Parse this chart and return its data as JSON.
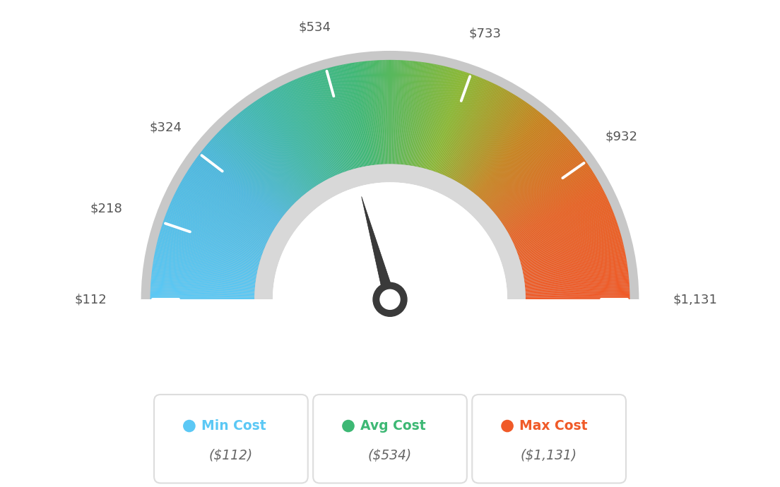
{
  "min_val": 112,
  "max_val": 1131,
  "avg_val": 534,
  "labels": [
    "$112",
    "$218",
    "$324",
    "$534",
    "$733",
    "$932",
    "$1,131"
  ],
  "label_values": [
    112,
    218,
    324,
    534,
    733,
    932,
    1131
  ],
  "min_cost_label": "Min Cost",
  "avg_cost_label": "Avg Cost",
  "max_cost_label": "Max Cost",
  "min_cost_val": "($112)",
  "avg_cost_val": "($534)",
  "max_cost_val": "($1,131)",
  "min_color": "#5bc8f5",
  "avg_color": "#3db874",
  "max_color": "#f05a28",
  "needle_color": "#404040",
  "background_color": "#ffffff",
  "text_color": "#555555",
  "color_stops": [
    [
      0.0,
      "#5bc8f5"
    ],
    [
      0.2,
      "#4ab8e0"
    ],
    [
      0.32,
      "#3db8a8"
    ],
    [
      0.45,
      "#3db874"
    ],
    [
      0.6,
      "#8ab830"
    ],
    [
      0.72,
      "#c8821a"
    ],
    [
      0.85,
      "#e86020"
    ],
    [
      1.0,
      "#f05a28"
    ]
  ]
}
